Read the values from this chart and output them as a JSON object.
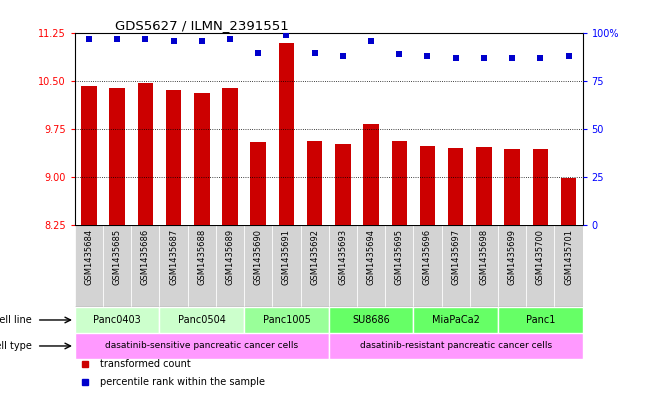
{
  "title": "GDS5627 / ILMN_2391551",
  "samples": [
    "GSM1435684",
    "GSM1435685",
    "GSM1435686",
    "GSM1435687",
    "GSM1435688",
    "GSM1435689",
    "GSM1435690",
    "GSM1435691",
    "GSM1435692",
    "GSM1435693",
    "GSM1435694",
    "GSM1435695",
    "GSM1435696",
    "GSM1435697",
    "GSM1435698",
    "GSM1435699",
    "GSM1435700",
    "GSM1435701"
  ],
  "bar_values": [
    10.42,
    10.4,
    10.47,
    10.37,
    10.32,
    10.4,
    9.55,
    11.1,
    9.57,
    9.52,
    9.83,
    9.57,
    9.48,
    9.46,
    9.47,
    9.44,
    9.44,
    8.99
  ],
  "dot_values": [
    97,
    97,
    97,
    96,
    96,
    97,
    90,
    99,
    90,
    88,
    96,
    89,
    88,
    87,
    87,
    87,
    87,
    88
  ],
  "ylim_left": [
    8.25,
    11.25
  ],
  "ylim_right": [
    0,
    100
  ],
  "yticks_left": [
    8.25,
    9.0,
    9.75,
    10.5,
    11.25
  ],
  "yticks_right": [
    0,
    25,
    50,
    75,
    100
  ],
  "bar_color": "#cc0000",
  "dot_color": "#0000cc",
  "cell_lines": [
    {
      "name": "Panc0403",
      "start": 0,
      "end": 2,
      "color": "#ccffcc"
    },
    {
      "name": "Panc0504",
      "start": 3,
      "end": 5,
      "color": "#ccffcc"
    },
    {
      "name": "Panc1005",
      "start": 6,
      "end": 8,
      "color": "#99ff99"
    },
    {
      "name": "SU8686",
      "start": 9,
      "end": 11,
      "color": "#66ff66"
    },
    {
      "name": "MiaPaCa2",
      "start": 12,
      "end": 14,
      "color": "#66ff66"
    },
    {
      "name": "Panc1",
      "start": 15,
      "end": 17,
      "color": "#66ff66"
    }
  ],
  "cell_types": [
    {
      "name": "dasatinib-sensitive pancreatic cancer cells",
      "start": 0,
      "end": 8,
      "color": "#ff99ff"
    },
    {
      "name": "dasatinib-resistant pancreatic cancer cells",
      "start": 9,
      "end": 17,
      "color": "#ff99ff"
    }
  ],
  "legend": [
    {
      "label": "transformed count",
      "color": "#cc0000"
    },
    {
      "label": "percentile rank within the sample",
      "color": "#0000cc"
    }
  ],
  "sample_label_bg": "#d3d3d3",
  "label_fontsize": 6.0,
  "bar_width": 0.55
}
